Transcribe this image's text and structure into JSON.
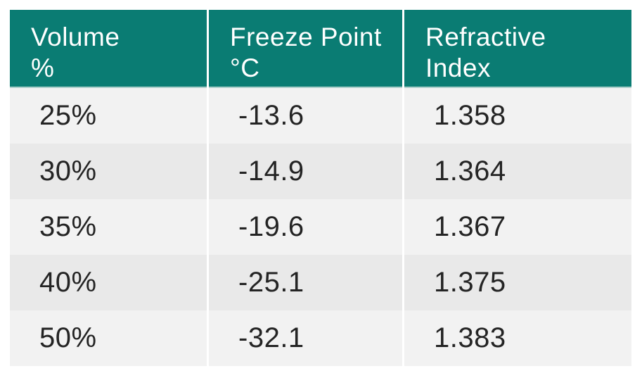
{
  "colors": {
    "header_background": "#0a7c73",
    "header_text": "#ffffff",
    "header_bottom_rule": "#a9cdc9",
    "row_odd_background": "#f2f2f2",
    "row_even_background": "#e9e9e9",
    "cell_text": "#242424",
    "page_background": "#ffffff"
  },
  "table": {
    "headers": [
      {
        "label": "Volume\n%"
      },
      {
        "label": "Freeze Point\n°C"
      },
      {
        "label": "Refractive\nIndex"
      }
    ],
    "rows": [
      [
        "25%",
        "-13.6",
        "1.358"
      ],
      [
        "30%",
        "-14.9",
        "1.364"
      ],
      [
        "35%",
        "-19.6",
        "1.367"
      ],
      [
        "40%",
        "-25.1",
        "1.375"
      ],
      [
        "50%",
        "-32.1",
        "1.383"
      ]
    ]
  },
  "chart_data": {
    "type": "table",
    "columns": [
      "Volume %",
      "Freeze Point °C",
      "Refractive Index"
    ],
    "rows": [
      [
        "25%",
        -13.6,
        1.358
      ],
      [
        "30%",
        -14.9,
        1.364
      ],
      [
        "35%",
        -19.6,
        1.367
      ],
      [
        "40%",
        -25.1,
        1.375
      ],
      [
        "50%",
        -32.1,
        1.383
      ]
    ],
    "title": "",
    "legend": "none",
    "grid": "off"
  }
}
